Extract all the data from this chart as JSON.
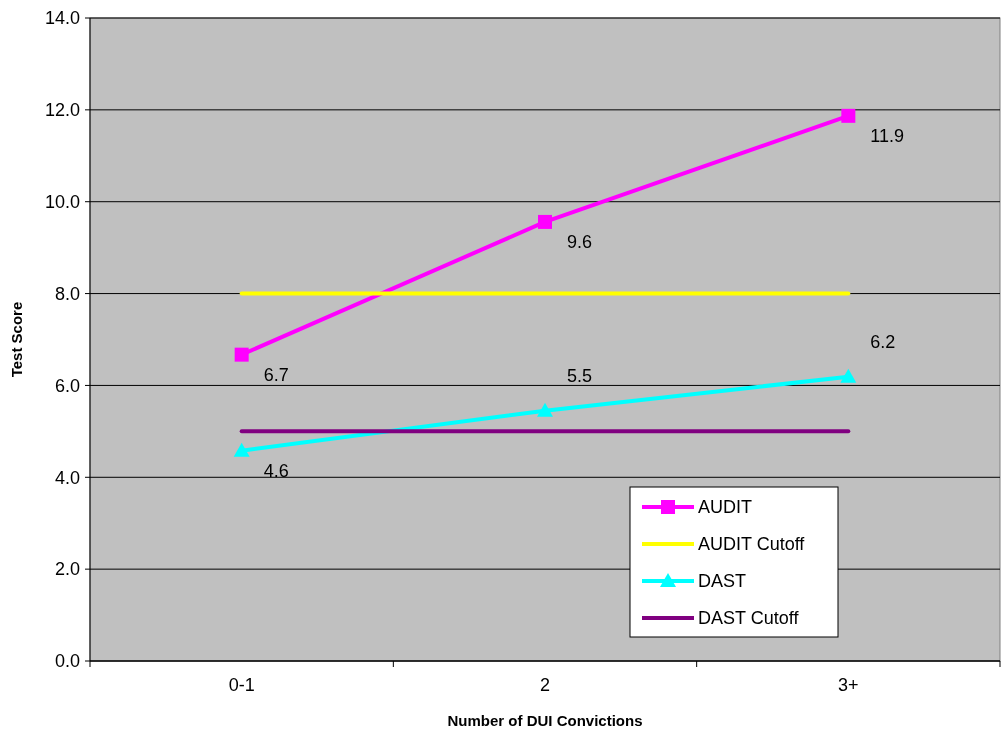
{
  "chart_data": {
    "type": "line",
    "xlabel": "Number of DUI Convictions",
    "ylabel": "Test Score",
    "categories": [
      "0-1",
      "2",
      "3+"
    ],
    "ylim": [
      0,
      14
    ],
    "yticks": [
      {
        "value": 0,
        "label": "0.0"
      },
      {
        "value": 2,
        "label": "2.0"
      },
      {
        "value": 4,
        "label": "4.0"
      },
      {
        "value": 6,
        "label": "6.0"
      },
      {
        "value": 8,
        "label": "8.0"
      },
      {
        "value": 10,
        "label": "10.0"
      },
      {
        "value": 12,
        "label": "12.0"
      },
      {
        "value": 14,
        "label": "14.0"
      }
    ],
    "grid": "y",
    "legend": "bottom right",
    "series": [
      {
        "name": "AUDIT",
        "color": "#ff00ff",
        "values": [
          6.67,
          9.56,
          11.87
        ],
        "marker": "square",
        "value_labels": [
          "6.7",
          "9.6",
          "11.9"
        ]
      },
      {
        "name": "AUDIT Cutoff",
        "color": "#ffff00",
        "values": [
          8,
          8,
          8
        ],
        "marker": "none"
      },
      {
        "name": "DAST",
        "color": "#00ffff",
        "values": [
          4.58,
          5.45,
          6.19
        ],
        "marker": "triangle",
        "value_labels": [
          "4.6",
          "5.5",
          "6.2"
        ]
      },
      {
        "name": "DAST Cutoff",
        "color": "#800080",
        "values": [
          5,
          5,
          5
        ],
        "marker": "none"
      }
    ]
  }
}
